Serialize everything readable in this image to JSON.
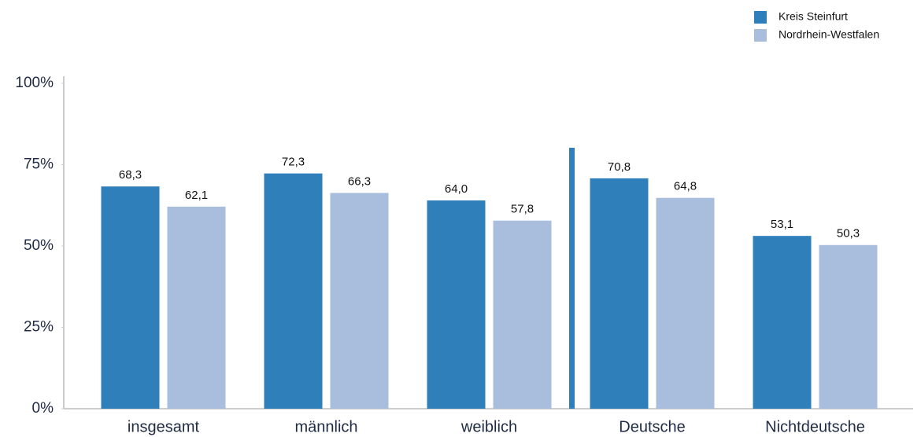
{
  "chart_data": {
    "type": "bar",
    "categories": [
      "insgesamt",
      "männlich",
      "weiblich",
      "Deutsche",
      "Nichtdeutsche"
    ],
    "series": [
      {
        "name": "Kreis Steinfurt",
        "color": "#2e7fba",
        "values": [
          68.3,
          72.3,
          64.0,
          70.8,
          53.1
        ],
        "value_labels": [
          "68,3",
          "72,3",
          "64,0",
          "70,8",
          "53,1"
        ]
      },
      {
        "name": "Nordrhein-Westfalen",
        "color": "#a9bedd",
        "values": [
          62.1,
          66.3,
          57.8,
          64.8,
          50.3
        ],
        "value_labels": [
          "62,1",
          "66,3",
          "57,8",
          "64,8",
          "50,3"
        ]
      }
    ],
    "ylim": [
      0,
      100
    ],
    "yticks": [
      {
        "value": 0,
        "label": "0%"
      },
      {
        "value": 25,
        "label": "25%"
      },
      {
        "value": 50,
        "label": "50%"
      },
      {
        "value": 75,
        "label": "75%"
      },
      {
        "value": 100,
        "label": "100%"
      }
    ],
    "legend": "top-right"
  }
}
